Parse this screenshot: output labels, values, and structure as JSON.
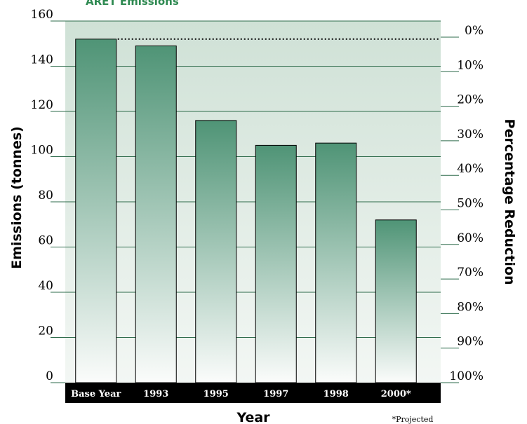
{
  "colors": {
    "bar_top": "#4f9476",
    "bar_bottom": "#fbfcfb",
    "plot_bg_top": "#cfe1d6",
    "plot_bg_bottom": "#f3f7f4",
    "title": "#2f8a52",
    "category_band": "#000000"
  },
  "footnote": "*Projected",
  "chart_data": {
    "type": "bar",
    "title": "ARET Emissions",
    "xlabel": "Year",
    "ylabel": "Emissions (tonnes)",
    "y2label": "Percentage Reduction",
    "categories": [
      "Base Year",
      "1993",
      "1995",
      "1997",
      "1998",
      "2000*"
    ],
    "values": [
      152,
      149,
      116,
      105,
      106,
      72
    ],
    "ylim": [
      0,
      160
    ],
    "yticks": [
      0,
      20,
      40,
      60,
      80,
      100,
      120,
      140,
      160
    ],
    "y2ticks": [
      "0%",
      "10%",
      "20%",
      "30%",
      "40%",
      "50%",
      "60%",
      "70%",
      "80%",
      "90%",
      "100%"
    ],
    "baseline_value": 152,
    "grid": true
  }
}
